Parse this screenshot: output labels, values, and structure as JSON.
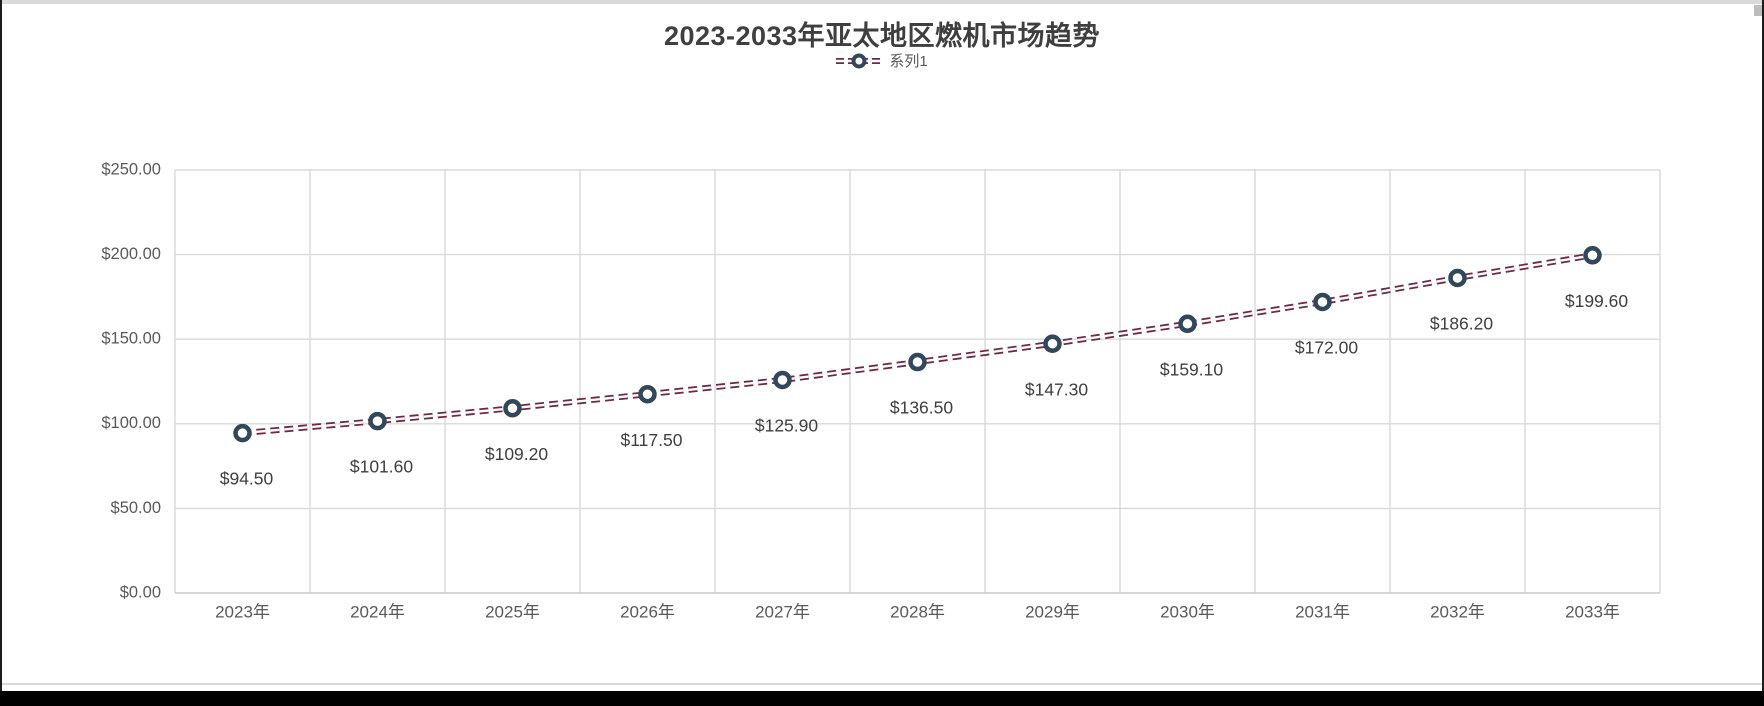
{
  "page": {
    "background": "#ffffff",
    "top_strip_color": "#d9d9d9",
    "bottom_bar_color": "#000000",
    "edge_color": "#1c1c1c"
  },
  "chart_data": {
    "type": "line",
    "title": "2023-2033年亚太地区燃机市场趋势",
    "categories": [
      "2023年",
      "2024年",
      "2025年",
      "2026年",
      "2027年",
      "2028年",
      "2029年",
      "2030年",
      "2031年",
      "2032年",
      "2033年"
    ],
    "series": [
      {
        "name": "系列1",
        "values": [
          94.5,
          101.6,
          109.2,
          117.5,
          125.9,
          136.5,
          147.3,
          159.1,
          172.0,
          186.2,
          199.6
        ],
        "point_labels": [
          "$94.50",
          "$101.60",
          "$109.20",
          "$117.50",
          "$125.90",
          "$136.50",
          "$147.30",
          "$159.10",
          "$172.00",
          "$186.20",
          "$199.60"
        ]
      }
    ],
    "xlabel": "",
    "ylabel": "",
    "ylim": [
      0,
      250
    ],
    "ytick_step": 50,
    "ytick_labels": [
      "$0.00",
      "$50.00",
      "$100.00",
      "$150.00",
      "$200.00",
      "$250.00"
    ],
    "grid": true,
    "legend_position": "top-center",
    "line_style": "double-dashed",
    "marker": "open-circle",
    "colors": {
      "line": "#6b2a48",
      "line_gap": "#ffffff",
      "marker_ring": "#33475b",
      "marker_fill": "#ffffff",
      "grid": "#d9d9d9",
      "axis_line": "#c9c9c9",
      "title_text": "#3f3f3f",
      "axis_text": "#595959",
      "label_text": "#3f3f3f",
      "legend_text": "#595959"
    }
  }
}
